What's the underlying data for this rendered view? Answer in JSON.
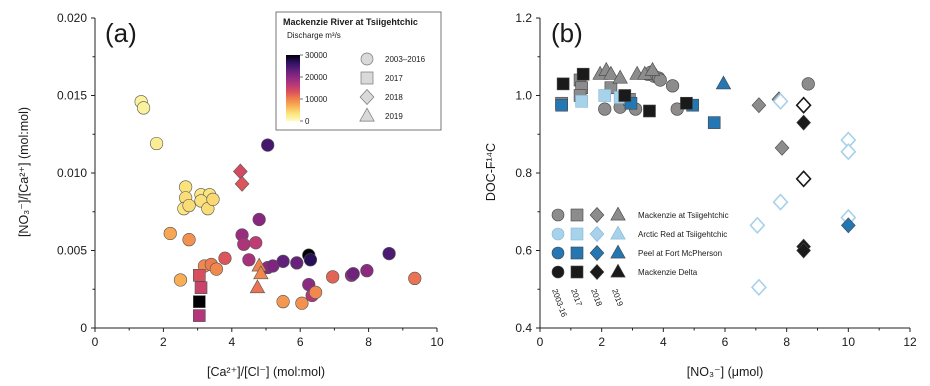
{
  "chart_data": [
    {
      "type": "scatter",
      "panel_label": "(a)",
      "xlabel": "[Ca²⁺]/[Cl⁻] (mol:mol)",
      "ylabel": "[NO₃⁻]/[Ca²⁺] (mol:mol)",
      "xlim": [
        0,
        10
      ],
      "ylim": [
        0,
        0.02
      ],
      "x_ticks": [
        0,
        2,
        4,
        6,
        8,
        10
      ],
      "y_ticks": [
        0,
        0.005,
        0.01,
        0.015,
        0.02
      ],
      "x_tick_labels": [
        "0",
        "2",
        "4",
        "6",
        "8",
        "10"
      ],
      "y_tick_labels": [
        "0",
        "0.005",
        "0.010",
        "0.015",
        "0.020"
      ],
      "legend": {
        "title": "Mackenzie River at Tsiigehtchic",
        "colorbar_title": "Discharge m³/s",
        "colorbar_ticks": [
          0,
          10000,
          20000,
          30000
        ],
        "colorbar_tick_labels": [
          "0",
          "10000",
          "20000",
          "30000"
        ],
        "colormap": [
          "#fcfdbf",
          "#fbe57e",
          "#f9b356",
          "#f0824d",
          "#d9505d",
          "#b73779",
          "#8c2981",
          "#5c1f7a",
          "#2d1160",
          "#000004"
        ],
        "shapes": [
          {
            "marker": "circle",
            "label": "2003–2016"
          },
          {
            "marker": "square",
            "label": "2017"
          },
          {
            "marker": "diamond",
            "label": "2018"
          },
          {
            "marker": "triangle",
            "label": "2019"
          }
        ]
      },
      "points": [
        {
          "marker": "circle",
          "x": 1.35,
          "y": 0.0146,
          "q": 1500
        },
        {
          "marker": "circle",
          "x": 1.42,
          "y": 0.0142,
          "q": 1800
        },
        {
          "marker": "circle",
          "x": 1.8,
          "y": 0.0119,
          "q": 2200
        },
        {
          "marker": "circle",
          "x": 2.65,
          "y": 0.0091,
          "q": 3500
        },
        {
          "marker": "circle",
          "x": 2.65,
          "y": 0.0084,
          "q": 3800
        },
        {
          "marker": "circle",
          "x": 2.6,
          "y": 0.0077,
          "q": 3200
        },
        {
          "marker": "circle",
          "x": 2.75,
          "y": 0.0079,
          "q": 4000
        },
        {
          "marker": "circle",
          "x": 3.1,
          "y": 0.0086,
          "q": 3000
        },
        {
          "marker": "circle",
          "x": 3.35,
          "y": 0.0086,
          "q": 3300
        },
        {
          "marker": "circle",
          "x": 3.1,
          "y": 0.0082,
          "q": 3600
        },
        {
          "marker": "circle",
          "x": 3.3,
          "y": 0.0077,
          "q": 3900
        },
        {
          "marker": "circle",
          "x": 3.45,
          "y": 0.0083,
          "q": 4200
        },
        {
          "marker": "circle",
          "x": 2.2,
          "y": 0.0061,
          "q": 7500
        },
        {
          "marker": "circle",
          "x": 2.75,
          "y": 0.0057,
          "q": 9000
        },
        {
          "marker": "circle",
          "x": 2.5,
          "y": 0.0031,
          "q": 7000
        },
        {
          "marker": "circle",
          "x": 3.2,
          "y": 0.004,
          "q": 9500
        },
        {
          "marker": "circle",
          "x": 3.4,
          "y": 0.0041,
          "q": 10500
        },
        {
          "marker": "circle",
          "x": 3.55,
          "y": 0.0038,
          "q": 9500
        },
        {
          "marker": "circle",
          "x": 3.8,
          "y": 0.0045,
          "q": 13000
        },
        {
          "marker": "circle",
          "x": 4.3,
          "y": 0.006,
          "q": 19000
        },
        {
          "marker": "circle",
          "x": 4.35,
          "y": 0.0054,
          "q": 17500
        },
        {
          "marker": "circle",
          "x": 4.7,
          "y": 0.0055,
          "q": 16000
        },
        {
          "marker": "circle",
          "x": 4.5,
          "y": 0.0044,
          "q": 18000
        },
        {
          "marker": "circle",
          "x": 4.8,
          "y": 0.007,
          "q": 20500
        },
        {
          "marker": "circle",
          "x": 5.05,
          "y": 0.0118,
          "q": 25000
        },
        {
          "marker": "circle",
          "x": 5.05,
          "y": 0.0039,
          "q": 20000
        },
        {
          "marker": "circle",
          "x": 5.2,
          "y": 0.004,
          "q": 21000
        },
        {
          "marker": "circle",
          "x": 5.5,
          "y": 0.0043,
          "q": 23000
        },
        {
          "marker": "circle",
          "x": 5.9,
          "y": 0.0042,
          "q": 22500
        },
        {
          "marker": "circle",
          "x": 6.25,
          "y": 0.0047,
          "q": 30000
        },
        {
          "marker": "circle",
          "x": 6.3,
          "y": 0.0044,
          "q": 27000
        },
        {
          "marker": "circle",
          "x": 6.25,
          "y": 0.0028,
          "q": 20000
        },
        {
          "marker": "circle",
          "x": 6.35,
          "y": 0.0021,
          "q": 17000
        },
        {
          "marker": "circle",
          "x": 5.5,
          "y": 0.0017,
          "q": 8500
        },
        {
          "marker": "circle",
          "x": 6.05,
          "y": 0.0016,
          "q": 9000
        },
        {
          "marker": "circle",
          "x": 6.45,
          "y": 0.0023,
          "q": 9500
        },
        {
          "marker": "circle",
          "x": 6.95,
          "y": 0.0033,
          "q": 12000
        },
        {
          "marker": "circle",
          "x": 7.5,
          "y": 0.0034,
          "q": 19000
        },
        {
          "marker": "circle",
          "x": 7.55,
          "y": 0.0035,
          "q": 22000
        },
        {
          "marker": "circle",
          "x": 7.95,
          "y": 0.0037,
          "q": 20000
        },
        {
          "marker": "circle",
          "x": 8.6,
          "y": 0.0048,
          "q": 24500
        },
        {
          "marker": "circle",
          "x": 9.35,
          "y": 0.0032,
          "q": 11000
        },
        {
          "marker": "square",
          "x": 3.05,
          "y": 0.0034,
          "q": 13500
        },
        {
          "marker": "square",
          "x": 3.1,
          "y": 0.0026,
          "q": 15000
        },
        {
          "marker": "square",
          "x": 3.05,
          "y": 0.0017,
          "q": 32000
        },
        {
          "marker": "square",
          "x": 3.05,
          "y": 0.0008,
          "q": 17000
        },
        {
          "marker": "diamond",
          "x": 4.25,
          "y": 0.0101,
          "q": 14000
        },
        {
          "marker": "diamond",
          "x": 4.3,
          "y": 0.0093,
          "q": 13000
        },
        {
          "marker": "triangle",
          "x": 4.8,
          "y": 0.004,
          "q": 10000
        },
        {
          "marker": "triangle",
          "x": 4.85,
          "y": 0.0035,
          "q": 9500
        },
        {
          "marker": "triangle",
          "x": 4.75,
          "y": 0.0026,
          "q": 11000
        }
      ]
    },
    {
      "type": "scatter",
      "panel_label": "(b)",
      "xlabel": "[NO₃⁻] (μmol)",
      "ylabel": "DOC-F¹⁴C",
      "xlim": [
        0,
        12
      ],
      "ylim": [
        0.4,
        1.2
      ],
      "x_ticks": [
        0,
        2,
        4,
        6,
        8,
        10,
        12
      ],
      "y_ticks": [
        0.4,
        0.6,
        0.8,
        1.0,
        1.2
      ],
      "x_tick_labels": [
        "0",
        "2",
        "4",
        "6",
        "8",
        "10",
        "12"
      ],
      "y_tick_labels": [
        "0.4",
        "0.6",
        "0.8",
        "1.0",
        "1.2"
      ],
      "legend": {
        "column_labels": [
          "2003-16",
          "2017",
          "2018",
          "2019"
        ],
        "column_markers": [
          "circle",
          "square",
          "diamond",
          "triangle"
        ],
        "rows": [
          {
            "label": "Mackenzie at Tsiigehtchic",
            "color": "#8c8c8c"
          },
          {
            "label": "Arctic Red at Tsiigehtchic",
            "color": "#a8d2ea"
          },
          {
            "label": "Peel at Fort McPherson",
            "color": "#2477b3"
          },
          {
            "label": "Mackenzie Delta",
            "color": "#1a1a1a"
          }
        ]
      },
      "points": [
        {
          "site": 0,
          "marker": "circle",
          "x": 2.1,
          "y": 0.965
        },
        {
          "site": 0,
          "marker": "circle",
          "x": 2.6,
          "y": 0.97
        },
        {
          "site": 0,
          "marker": "circle",
          "x": 3.1,
          "y": 0.965
        },
        {
          "site": 0,
          "marker": "circle",
          "x": 3.5,
          "y": 1.055
        },
        {
          "site": 0,
          "marker": "circle",
          "x": 3.6,
          "y": 1.06
        },
        {
          "site": 0,
          "marker": "circle",
          "x": 3.7,
          "y": 1.05
        },
        {
          "site": 0,
          "marker": "circle",
          "x": 3.85,
          "y": 1.045
        },
        {
          "site": 0,
          "marker": "circle",
          "x": 3.9,
          "y": 1.04
        },
        {
          "site": 0,
          "marker": "circle",
          "x": 4.3,
          "y": 1.025
        },
        {
          "site": 0,
          "marker": "circle",
          "x": 4.45,
          "y": 0.965
        },
        {
          "site": 0,
          "marker": "circle",
          "x": 8.7,
          "y": 1.03
        },
        {
          "site": 0,
          "marker": "square",
          "x": 1.3,
          "y": 1.04
        },
        {
          "site": 0,
          "marker": "square",
          "x": 1.35,
          "y": 1.02
        },
        {
          "site": 0,
          "marker": "square",
          "x": 1.3,
          "y": 1.0
        },
        {
          "site": 0,
          "marker": "square",
          "x": 2.3,
          "y": 1.02
        },
        {
          "site": 0,
          "marker": "square",
          "x": 2.9,
          "y": 0.99
        },
        {
          "site": 0,
          "marker": "diamond",
          "x": 7.1,
          "y": 0.975
        },
        {
          "site": 0,
          "marker": "diamond",
          "x": 7.75,
          "y": 0.99
        },
        {
          "site": 0,
          "marker": "diamond",
          "x": 7.85,
          "y": 0.865
        },
        {
          "site": 0,
          "marker": "triangle",
          "x": 1.95,
          "y": 1.055
        },
        {
          "site": 0,
          "marker": "triangle",
          "x": 2.15,
          "y": 1.065
        },
        {
          "site": 0,
          "marker": "triangle",
          "x": 2.3,
          "y": 1.055
        },
        {
          "site": 0,
          "marker": "triangle",
          "x": 2.6,
          "y": 1.045
        },
        {
          "site": 0,
          "marker": "triangle",
          "x": 3.15,
          "y": 1.055
        },
        {
          "site": 0,
          "marker": "triangle",
          "x": 3.4,
          "y": 1.055
        },
        {
          "site": 0,
          "marker": "triangle",
          "x": 3.65,
          "y": 1.065
        },
        {
          "site": 0,
          "marker": "square",
          "x": 0.7,
          "y": 0.98
        },
        {
          "site": 1,
          "marker": "square",
          "x": 1.35,
          "y": 0.985
        },
        {
          "site": 1,
          "marker": "square",
          "x": 2.1,
          "y": 1.0
        },
        {
          "site": 1,
          "marker": "square",
          "x": 2.6,
          "y": 0.995
        },
        {
          "site": 1,
          "marker": "diamond",
          "x": 7.05,
          "y": 0.665
        },
        {
          "site": 1,
          "marker": "diamond",
          "x": 7.1,
          "y": 0.505
        },
        {
          "site": 1,
          "marker": "diamond",
          "x": 7.8,
          "y": 0.725
        },
        {
          "site": 1,
          "marker": "diamond",
          "x": 7.8,
          "y": 0.985
        },
        {
          "site": 1,
          "marker": "diamond",
          "x": 10.0,
          "y": 0.885
        },
        {
          "site": 1,
          "marker": "diamond",
          "x": 10.0,
          "y": 0.855
        },
        {
          "site": 1,
          "marker": "diamond",
          "x": 10.0,
          "y": 0.685
        },
        {
          "site": 2,
          "marker": "square",
          "x": 0.7,
          "y": 0.975
        },
        {
          "site": 2,
          "marker": "square",
          "x": 2.95,
          "y": 0.98
        },
        {
          "site": 2,
          "marker": "square",
          "x": 4.95,
          "y": 0.975
        },
        {
          "site": 2,
          "marker": "square",
          "x": 5.65,
          "y": 0.93
        },
        {
          "site": 2,
          "marker": "diamond",
          "x": 10.0,
          "y": 0.665
        },
        {
          "site": 2,
          "marker": "triangle",
          "x": 5.95,
          "y": 1.03
        },
        {
          "site": 3,
          "marker": "square",
          "x": 0.75,
          "y": 1.03
        },
        {
          "site": 3,
          "marker": "square",
          "x": 1.4,
          "y": 1.055
        },
        {
          "site": 3,
          "marker": "square",
          "x": 2.75,
          "y": 1.0
        },
        {
          "site": 3,
          "marker": "square",
          "x": 3.55,
          "y": 0.96
        },
        {
          "site": 3,
          "marker": "square",
          "x": 4.75,
          "y": 0.98
        },
        {
          "site": 3,
          "marker": "diamond",
          "x": 8.55,
          "y": 0.975
        },
        {
          "site": 3,
          "marker": "diamond",
          "x": 8.55,
          "y": 0.785
        },
        {
          "site": 3,
          "marker": "diamond",
          "x": 8.55,
          "y": 0.93
        },
        {
          "site": 3,
          "marker": "diamond",
          "x": 8.55,
          "y": 0.61
        },
        {
          "site": 3,
          "marker": "diamond",
          "x": 8.55,
          "y": 0.6
        }
      ]
    }
  ]
}
